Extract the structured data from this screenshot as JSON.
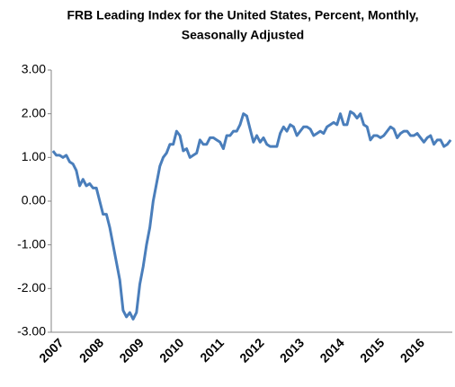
{
  "chart_data": {
    "type": "line",
    "title": [
      "FRB Leading Index for the United States, Percent, Monthly,",
      "Seasonally Adjusted"
    ],
    "categories": [
      "2007",
      null,
      null,
      null,
      null,
      null,
      null,
      null,
      null,
      null,
      null,
      null,
      "2008",
      null,
      null,
      null,
      null,
      null,
      null,
      null,
      null,
      null,
      null,
      null,
      "2009",
      null,
      null,
      null,
      null,
      null,
      null,
      null,
      null,
      null,
      null,
      null,
      "2010",
      null,
      null,
      null,
      null,
      null,
      null,
      null,
      null,
      null,
      null,
      null,
      "2011",
      null,
      null,
      null,
      null,
      null,
      null,
      null,
      null,
      null,
      null,
      null,
      "2012",
      null,
      null,
      null,
      null,
      null,
      null,
      null,
      null,
      null,
      null,
      null,
      "2013",
      null,
      null,
      null,
      null,
      null,
      null,
      null,
      null,
      null,
      null,
      null,
      "2014",
      null,
      null,
      null,
      null,
      null,
      null,
      null,
      null,
      null,
      null,
      null,
      "2015",
      null,
      null,
      null,
      null,
      null,
      null,
      null,
      null,
      null,
      null,
      null,
      "2016",
      null,
      null,
      null,
      null,
      null,
      null,
      null,
      null,
      null,
      null,
      null
    ],
    "values": [
      1.15,
      1.05,
      1.05,
      1.0,
      1.05,
      0.9,
      0.85,
      0.7,
      0.35,
      0.5,
      0.35,
      0.4,
      0.3,
      0.3,
      0.0,
      -0.3,
      -0.3,
      -0.6,
      -1.0,
      -1.4,
      -1.8,
      -2.5,
      -2.65,
      -2.55,
      -2.7,
      -2.55,
      -1.9,
      -1.5,
      -1.0,
      -0.6,
      0.0,
      0.4,
      0.8,
      1.0,
      1.1,
      1.3,
      1.3,
      1.6,
      1.5,
      1.15,
      1.2,
      1.0,
      1.05,
      1.1,
      1.4,
      1.3,
      1.3,
      1.45,
      1.45,
      1.4,
      1.35,
      1.2,
      1.5,
      1.5,
      1.6,
      1.6,
      1.75,
      2.0,
      1.95,
      1.65,
      1.35,
      1.5,
      1.35,
      1.45,
      1.3,
      1.25,
      1.25,
      1.25,
      1.55,
      1.7,
      1.6,
      1.75,
      1.7,
      1.5,
      1.6,
      1.7,
      1.7,
      1.65,
      1.5,
      1.55,
      1.6,
      1.55,
      1.7,
      1.75,
      1.8,
      1.75,
      2.0,
      1.75,
      1.75,
      2.05,
      2.0,
      1.9,
      2.0,
      1.75,
      1.7,
      1.4,
      1.5,
      1.5,
      1.45,
      1.5,
      1.6,
      1.7,
      1.65,
      1.45,
      1.55,
      1.6,
      1.6,
      1.5,
      1.5,
      1.55,
      1.45,
      1.35,
      1.45,
      1.5,
      1.3,
      1.4,
      1.4,
      1.25,
      1.3,
      1.4
    ],
    "color": "#4a7ebb",
    "ylim": [
      -3,
      3
    ],
    "yticks": [
      {
        "value": -3,
        "label": "-3.00"
      },
      {
        "value": -2,
        "label": "-2.00"
      },
      {
        "value": -1,
        "label": "-1.00"
      },
      {
        "value": 0,
        "label": "0.00"
      },
      {
        "value": 1,
        "label": "1.00"
      },
      {
        "value": 2,
        "label": "2.00"
      },
      {
        "value": 3,
        "label": "3.00"
      }
    ],
    "grid": false
  }
}
